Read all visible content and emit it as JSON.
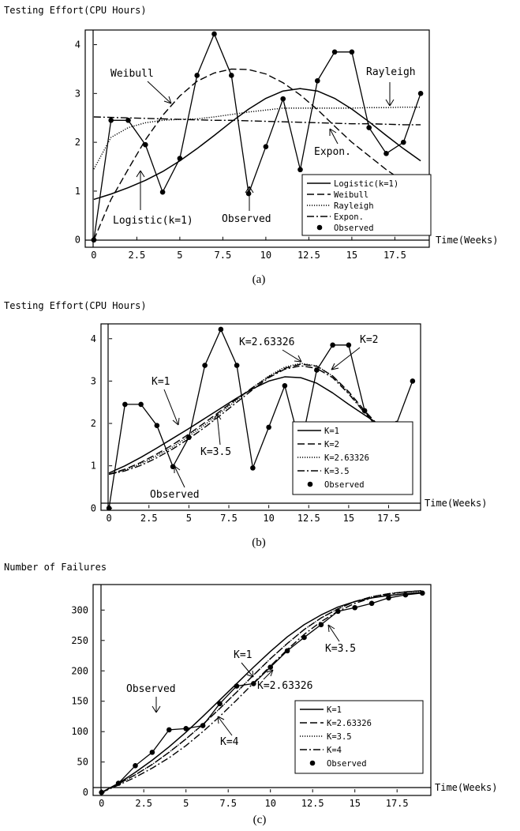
{
  "chart_data": [
    {
      "type": "line",
      "panel_label": "(a)",
      "ylabel": "Testing Effort(CPU Hours)",
      "xlabel": "Time(Weeks)",
      "xlim": [
        -0.5,
        19.5
      ],
      "ylim": [
        -0.15,
        4.3
      ],
      "xticks": [
        0,
        2.5,
        5,
        7.5,
        10,
        12.5,
        15,
        17.5
      ],
      "xtick_labels": [
        "0",
        "2.5",
        "5",
        "7.5",
        "10",
        "12.5",
        "15",
        "17.5"
      ],
      "yticks": [
        0,
        1,
        2,
        3,
        4
      ],
      "ytick_labels": [
        "0",
        "1",
        "2",
        "3",
        "4"
      ],
      "grid": false,
      "legend_position": "bottom-right",
      "series": [
        {
          "name": "Logistic(k=1)",
          "style": "solid",
          "x": [
            0,
            1,
            2,
            3,
            4,
            5,
            6,
            7,
            8,
            9,
            10,
            11,
            12,
            13,
            14,
            15,
            16,
            17,
            18,
            19
          ],
          "y": [
            0.83,
            0.94,
            1.07,
            1.22,
            1.4,
            1.62,
            1.87,
            2.14,
            2.42,
            2.68,
            2.9,
            3.05,
            3.1,
            3.05,
            2.9,
            2.68,
            2.42,
            2.14,
            1.87,
            1.62
          ]
        },
        {
          "name": "Weibull",
          "style": "dashed",
          "x": [
            0,
            1,
            2,
            3,
            4,
            5,
            6,
            7,
            8,
            9,
            10,
            11,
            12,
            13,
            14,
            15,
            16,
            17,
            18
          ],
          "y": [
            0,
            0.83,
            1.45,
            2.05,
            2.55,
            2.95,
            3.25,
            3.42,
            3.5,
            3.49,
            3.4,
            3.22,
            2.97,
            2.67,
            2.33,
            2.0,
            1.72,
            1.44,
            1.2
          ]
        },
        {
          "name": "Rayleigh",
          "style": "dotted",
          "x": [
            0,
            1,
            2,
            3,
            4,
            5,
            6,
            7,
            8,
            9,
            10,
            11,
            12,
            13,
            14,
            15,
            16,
            17,
            18,
            19
          ],
          "y": [
            1.45,
            2.1,
            2.3,
            2.4,
            2.45,
            2.47,
            2.48,
            2.52,
            2.57,
            2.62,
            2.66,
            2.7,
            2.7,
            2.7,
            2.7,
            2.7,
            2.71,
            2.71,
            2.72,
            2.72
          ]
        },
        {
          "name": "Expon.",
          "style": "dashdot",
          "x": [
            0,
            1,
            2,
            3,
            4,
            5,
            6,
            7,
            8,
            9,
            10,
            11,
            12,
            13,
            14,
            15,
            16,
            17,
            18,
            19
          ],
          "y": [
            2.52,
            2.51,
            2.5,
            2.49,
            2.48,
            2.47,
            2.46,
            2.45,
            2.45,
            2.44,
            2.43,
            2.42,
            2.41,
            2.4,
            2.39,
            2.38,
            2.38,
            2.37,
            2.36,
            2.36
          ]
        },
        {
          "name": "Observed",
          "style": "points",
          "x": [
            0,
            1,
            2,
            3,
            4,
            5,
            6,
            7,
            8,
            9,
            10,
            11,
            12,
            13,
            14,
            15,
            16,
            17,
            18,
            19
          ],
          "y": [
            0,
            2.45,
            2.45,
            1.95,
            0.98,
            1.67,
            3.37,
            4.22,
            3.37,
            0.95,
            1.91,
            2.89,
            1.44,
            3.26,
            3.85,
            3.85,
            2.3,
            1.77,
            2.0,
            3.0
          ]
        }
      ],
      "annotations": [
        "Weibull",
        "Rayleigh",
        "Logistic(k=1)",
        "Observed",
        "Expon."
      ]
    },
    {
      "type": "line",
      "panel_label": "(b)",
      "ylabel": "Testing Effort(CPU Hours)",
      "xlabel": "Time(Weeks)",
      "xlim": [
        -0.5,
        19.5
      ],
      "ylim": [
        -0.05,
        4.35
      ],
      "xticks": [
        0,
        2.5,
        5,
        7.5,
        10,
        12.5,
        15,
        17.5
      ],
      "xtick_labels": [
        "0",
        "2.5",
        "5",
        "7.5",
        "10",
        "12.5",
        "15",
        "17.5"
      ],
      "yticks": [
        0,
        1,
        2,
        3,
        4
      ],
      "ytick_labels": [
        "0",
        "1",
        "2",
        "3",
        "4"
      ],
      "grid": false,
      "legend_position": "bottom-right",
      "series": [
        {
          "name": "K=1",
          "style": "solid",
          "x": [
            0,
            1,
            2,
            3,
            4,
            5,
            6,
            7,
            8,
            9,
            10,
            11,
            12,
            13,
            14,
            15,
            16,
            17,
            18
          ],
          "y": [
            0.83,
            1.0,
            1.2,
            1.42,
            1.65,
            1.88,
            2.12,
            2.36,
            2.6,
            2.82,
            3.0,
            3.1,
            3.08,
            2.95,
            2.72,
            2.45,
            2.2,
            1.95,
            1.8
          ]
        },
        {
          "name": "K=2",
          "style": "dashed",
          "x": [
            0,
            1,
            2,
            3,
            4,
            5,
            6,
            7,
            8,
            9,
            10,
            11,
            12,
            13,
            14,
            15,
            16,
            17
          ],
          "y": [
            0.8,
            0.92,
            1.08,
            1.28,
            1.5,
            1.75,
            2.02,
            2.3,
            2.58,
            2.85,
            3.1,
            3.3,
            3.4,
            3.35,
            3.12,
            2.75,
            2.3,
            1.9
          ]
        },
        {
          "name": "K=2.63326",
          "style": "dotted",
          "x": [
            0,
            1,
            2,
            3,
            4,
            5,
            6,
            7,
            8,
            9,
            10,
            11,
            12,
            13,
            14,
            15,
            16,
            17
          ],
          "y": [
            0.8,
            0.9,
            1.05,
            1.24,
            1.45,
            1.7,
            1.97,
            2.26,
            2.55,
            2.85,
            3.12,
            3.33,
            3.42,
            3.36,
            3.12,
            2.72,
            2.27,
            1.88
          ]
        },
        {
          "name": "K=3.5",
          "style": "dashdot",
          "x": [
            0,
            1,
            2,
            3,
            4,
            5,
            6,
            7,
            8,
            9,
            10,
            11,
            12,
            13,
            14,
            15,
            16,
            17
          ],
          "y": [
            0.8,
            0.88,
            1.01,
            1.19,
            1.4,
            1.64,
            1.91,
            2.2,
            2.5,
            2.8,
            3.08,
            3.28,
            3.36,
            3.3,
            3.08,
            2.7,
            2.25,
            1.85
          ]
        },
        {
          "name": "Observed",
          "style": "points",
          "x": [
            0,
            1,
            2,
            3,
            4,
            5,
            6,
            7,
            8,
            9,
            10,
            11,
            12,
            13,
            14,
            15,
            16,
            17,
            18,
            19
          ],
          "y": [
            0,
            2.45,
            2.45,
            1.95,
            0.98,
            1.67,
            3.37,
            4.22,
            3.37,
            0.95,
            1.91,
            2.89,
            1.44,
            3.26,
            3.85,
            3.85,
            2.3,
            1.77,
            2.0,
            3.0
          ]
        }
      ],
      "annotations": [
        "K=1",
        "K=2.63326",
        "K=2",
        "K=3.5",
        "Observed"
      ]
    },
    {
      "type": "line",
      "panel_label": "(c)",
      "ylabel": "Number of Failures",
      "xlabel": "Time(Weeks)",
      "xlim": [
        -0.5,
        19.5
      ],
      "ylim": [
        -5,
        342
      ],
      "xticks": [
        0,
        2.5,
        5,
        7.5,
        10,
        12.5,
        15,
        17.5
      ],
      "xtick_labels": [
        "0",
        "2.5",
        "5",
        "7.5",
        "10",
        "12.5",
        "15",
        "17.5"
      ],
      "yticks": [
        0,
        50,
        100,
        150,
        200,
        250,
        300
      ],
      "ytick_labels": [
        "0",
        "50",
        "100",
        "150",
        "200",
        "250",
        "300"
      ],
      "grid": false,
      "legend_position": "bottom-right",
      "series": [
        {
          "name": "K=1",
          "style": "solid",
          "x": [
            0,
            1,
            2,
            3,
            4,
            5,
            6,
            7,
            8,
            9,
            10,
            11,
            12,
            13,
            14,
            15,
            16,
            17,
            18,
            19
          ],
          "y": [
            0,
            15,
            33,
            53,
            75,
            99,
            125,
            152,
            179,
            206,
            232,
            256,
            276,
            292,
            305,
            314,
            320,
            324,
            327,
            329
          ]
        },
        {
          "name": "K=2.63326",
          "style": "dashed",
          "x": [
            0,
            1,
            2,
            3,
            4,
            5,
            6,
            7,
            8,
            9,
            10,
            11,
            12,
            13,
            14,
            15,
            16,
            17,
            18,
            19
          ],
          "y": [
            0,
            14,
            29,
            46,
            66,
            88,
            112,
            138,
            165,
            193,
            220,
            245,
            268,
            287,
            302,
            314,
            322,
            327,
            330,
            332
          ]
        },
        {
          "name": "K=3.5",
          "style": "dotted",
          "x": [
            0,
            1,
            2,
            3,
            4,
            5,
            6,
            7,
            8,
            9,
            10,
            11,
            12,
            13,
            14,
            15,
            16,
            17,
            18,
            19
          ],
          "y": [
            0,
            14,
            29,
            46,
            66,
            88,
            112,
            138,
            165,
            193,
            220,
            245,
            268,
            287,
            302,
            314,
            322,
            327,
            330,
            331
          ]
        },
        {
          "name": "K=4",
          "style": "dashdot",
          "x": [
            0,
            1,
            2,
            3,
            4,
            5,
            6,
            7,
            8,
            9,
            10,
            11,
            12,
            13,
            14,
            15,
            16,
            17,
            18,
            19
          ],
          "y": [
            0,
            12,
            25,
            40,
            57,
            77,
            100,
            125,
            152,
            180,
            208,
            235,
            260,
            281,
            298,
            311,
            320,
            326,
            330,
            332
          ]
        },
        {
          "name": "Observed",
          "style": "points",
          "x": [
            0,
            1,
            2,
            3,
            4,
            5,
            6,
            7,
            8,
            9,
            10,
            11,
            12,
            13,
            14,
            15,
            16,
            17,
            18,
            19
          ],
          "y": [
            0,
            15,
            44,
            66,
            103,
            105,
            110,
            146,
            175,
            179,
            206,
            233,
            255,
            276,
            298,
            304,
            311,
            320,
            325,
            328
          ]
        }
      ],
      "annotations": [
        "Observed",
        "K=1",
        "K=2.63326",
        "K=3.5",
        "K=4"
      ]
    }
  ]
}
